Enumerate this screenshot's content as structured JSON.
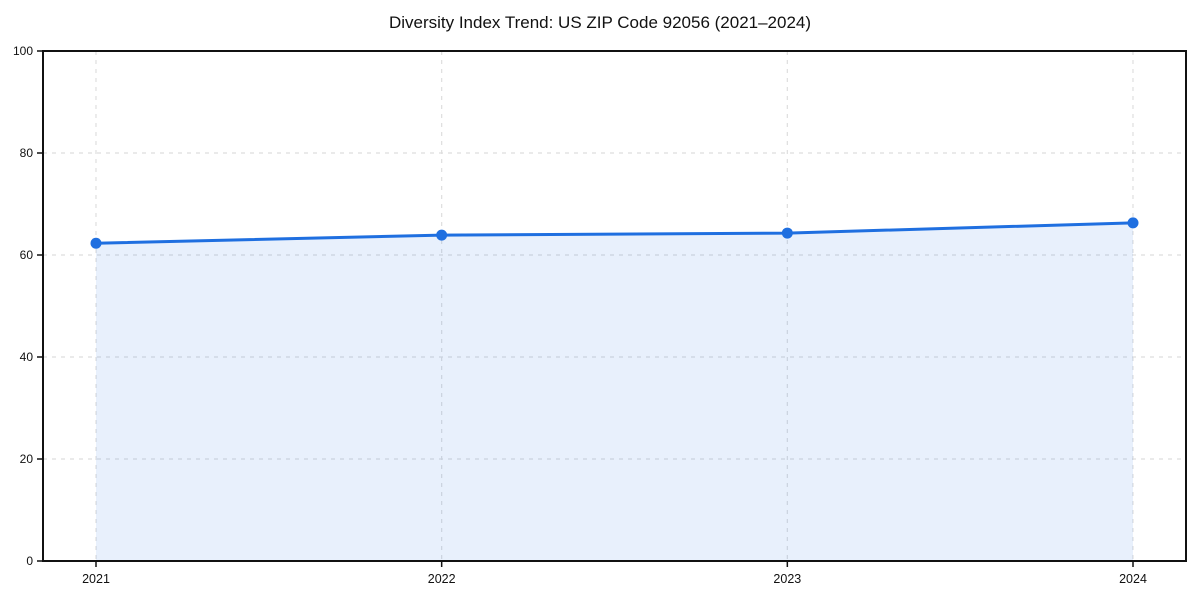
{
  "chart_data": {
    "type": "area",
    "title": "Diversity Index Trend: US ZIP Code 92056 (2021–2024)",
    "categories": [
      "2021",
      "2022",
      "2023",
      "2024"
    ],
    "series": [
      {
        "name": "Diversity Index",
        "values": [
          62.3,
          63.9,
          64.3,
          66.3
        ]
      }
    ],
    "xlabel": "",
    "ylabel": "",
    "ylim": [
      0,
      100
    ],
    "yticks": [
      0,
      20,
      40,
      60,
      80,
      100
    ],
    "grid": true,
    "grid_style": "dashed",
    "legend": "none",
    "colors": {
      "line": "#1f6fe0",
      "marker": "#1f6fe0",
      "fill": "rgba(31,111,224,0.10)",
      "grid": "#dedede",
      "spine": "#111111",
      "tick_text": "#111111",
      "background": "#ffffff"
    }
  }
}
